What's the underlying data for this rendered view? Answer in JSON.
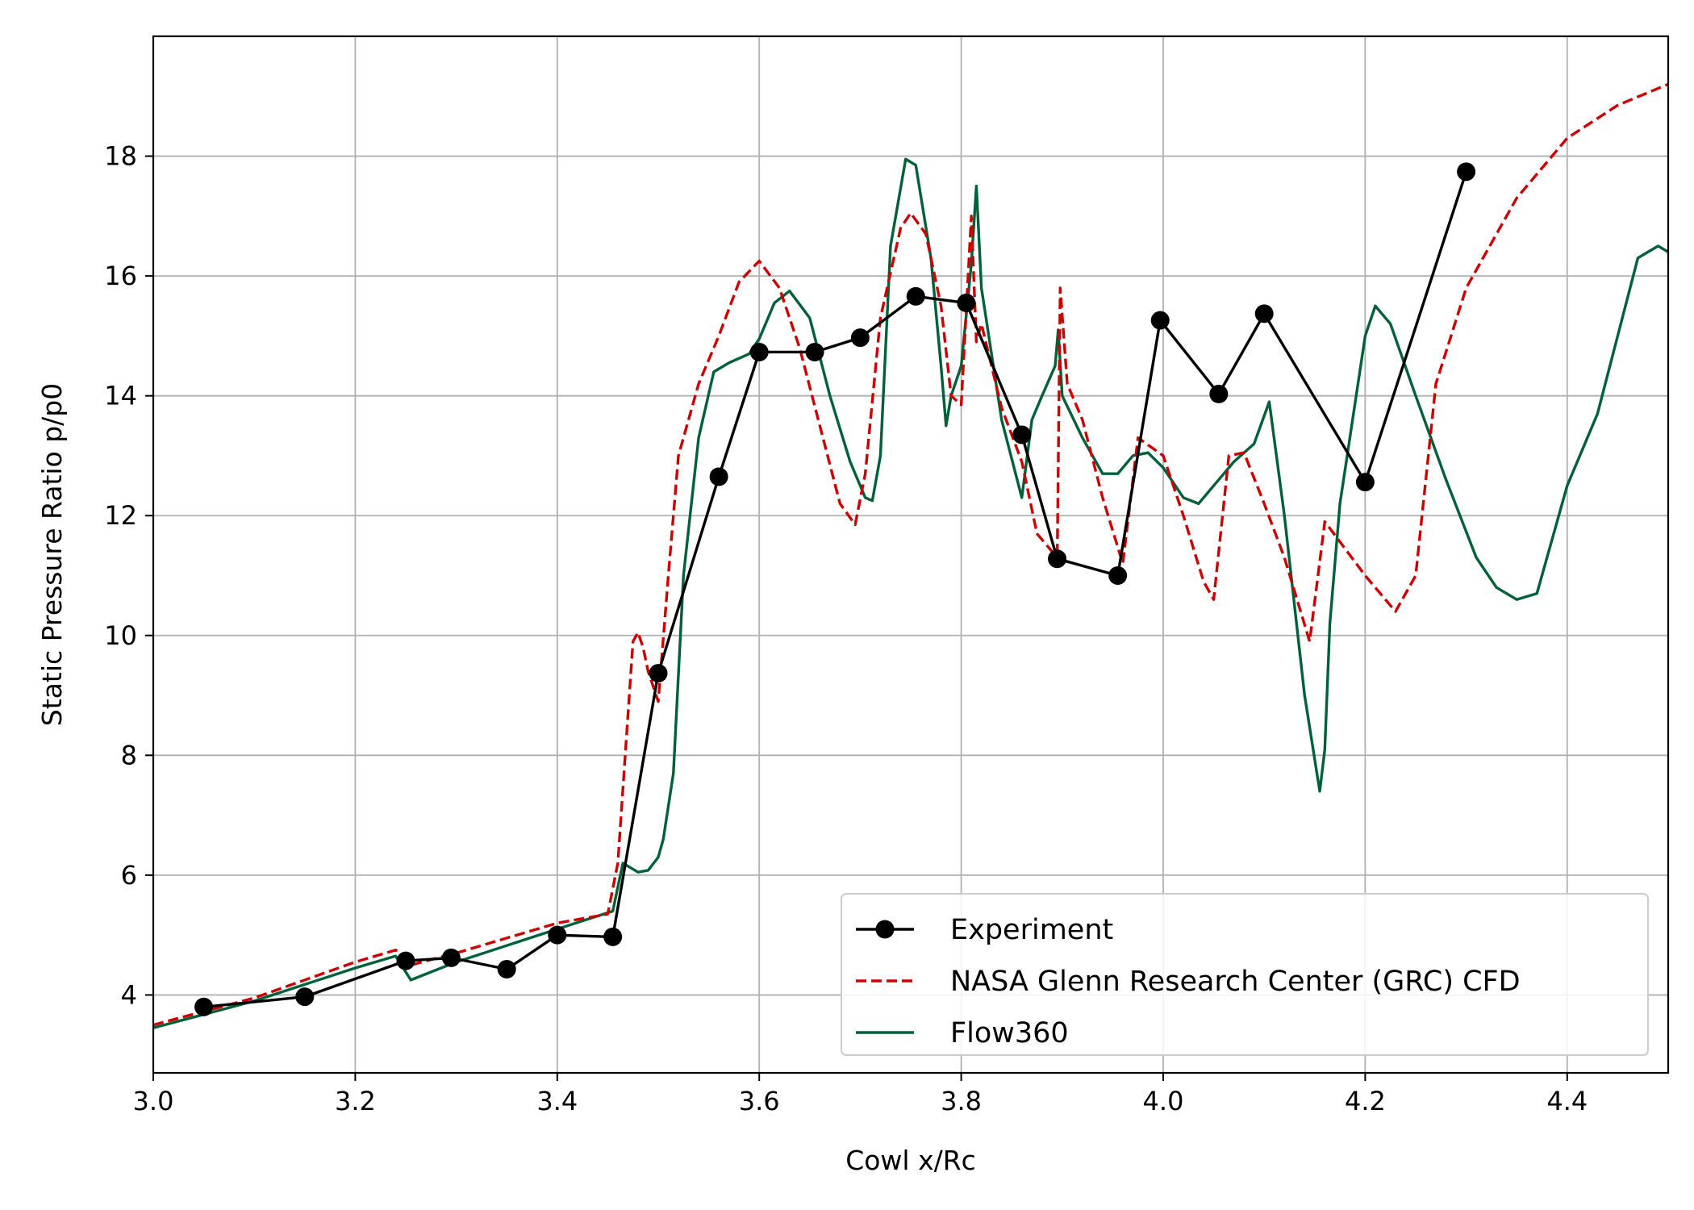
{
  "chart_data": {
    "type": "line",
    "xlabel": "Cowl x/Rc",
    "ylabel": "Static Pressure Ratio p/p0",
    "xlim": [
      3.0,
      4.5
    ],
    "ylim": [
      2.7,
      20.0
    ],
    "xticks": [
      3.0,
      3.2,
      3.4,
      3.6,
      3.8,
      4.0,
      4.2,
      4.4
    ],
    "yticks": [
      4,
      6,
      8,
      10,
      12,
      14,
      16,
      18
    ],
    "xtick_labels": [
      "3.0",
      "3.2",
      "3.4",
      "3.6",
      "3.8",
      "4.0",
      "4.2",
      "4.4"
    ],
    "ytick_labels": [
      "4",
      "6",
      "8",
      "10",
      "12",
      "14",
      "16",
      "18"
    ],
    "grid": true,
    "legend_position": "lower-right",
    "series": [
      {
        "name": "Experiment",
        "color": "#000000",
        "style": "solid-markers",
        "x": [
          3.05,
          3.15,
          3.25,
          3.295,
          3.35,
          3.4,
          3.455,
          3.5,
          3.56,
          3.6,
          3.655,
          3.7,
          3.755,
          3.805,
          3.86,
          3.895,
          3.955,
          3.997,
          4.055,
          4.1,
          4.2,
          4.3
        ],
        "y": [
          3.8,
          3.97,
          4.57,
          4.62,
          4.43,
          5.0,
          4.97,
          9.37,
          12.65,
          14.73,
          14.73,
          14.97,
          15.66,
          15.55,
          13.35,
          11.28,
          11.0,
          15.26,
          14.03,
          15.37,
          12.56,
          17.74
        ]
      },
      {
        "name": "NASA Glenn Research Center (GRC) CFD",
        "color": "#cc0000",
        "style": "dashed",
        "x": [
          3.0,
          3.1,
          3.2,
          3.24,
          3.255,
          3.3,
          3.4,
          3.45,
          3.46,
          3.475,
          3.48,
          3.485,
          3.49,
          3.5,
          3.51,
          3.52,
          3.54,
          3.56,
          3.58,
          3.6,
          3.62,
          3.64,
          3.66,
          3.68,
          3.695,
          3.705,
          3.72,
          3.74,
          3.75,
          3.765,
          3.78,
          3.79,
          3.8,
          3.81,
          3.815,
          3.82,
          3.84,
          3.86,
          3.875,
          3.89,
          3.895,
          3.898,
          3.905,
          3.92,
          3.94,
          3.96,
          3.975,
          4.0,
          4.02,
          4.04,
          4.05,
          4.065,
          4.08,
          4.1,
          4.12,
          4.145,
          4.16,
          4.2,
          4.23,
          4.25,
          4.27,
          4.3,
          4.35,
          4.4,
          4.45,
          4.5
        ],
        "y": [
          3.5,
          3.95,
          4.55,
          4.75,
          4.5,
          4.7,
          5.2,
          5.35,
          6.2,
          9.9,
          10.05,
          9.8,
          9.4,
          8.9,
          11.0,
          13.0,
          14.2,
          15.0,
          15.9,
          16.25,
          15.8,
          14.8,
          13.5,
          12.2,
          11.85,
          12.7,
          15.3,
          16.8,
          17.05,
          16.7,
          15.5,
          14.0,
          13.85,
          17.0,
          14.9,
          15.2,
          13.8,
          12.9,
          11.7,
          11.4,
          11.2,
          15.8,
          14.2,
          13.6,
          12.3,
          11.2,
          13.3,
          13.0,
          12.0,
          10.9,
          10.6,
          13.0,
          13.05,
          12.2,
          11.3,
          9.9,
          11.9,
          11.0,
          10.4,
          11.0,
          14.2,
          15.8,
          17.3,
          18.3,
          18.85,
          19.2
        ]
      },
      {
        "name": "Flow360",
        "color": "#00603a",
        "style": "solid",
        "x": [
          3.0,
          3.1,
          3.2,
          3.24,
          3.255,
          3.3,
          3.4,
          3.455,
          3.465,
          3.48,
          3.49,
          3.5,
          3.505,
          3.515,
          3.525,
          3.54,
          3.555,
          3.57,
          3.59,
          3.6,
          3.615,
          3.63,
          3.65,
          3.67,
          3.69,
          3.705,
          3.712,
          3.72,
          3.73,
          3.745,
          3.755,
          3.77,
          3.78,
          3.785,
          3.79,
          3.8,
          3.81,
          3.815,
          3.82,
          3.84,
          3.86,
          3.87,
          3.88,
          3.893,
          3.896,
          3.9,
          3.92,
          3.94,
          3.955,
          3.97,
          3.985,
          4.0,
          4.02,
          4.035,
          4.05,
          4.07,
          4.09,
          4.105,
          4.12,
          4.14,
          4.155,
          4.16,
          4.165,
          4.175,
          4.2,
          4.21,
          4.225,
          4.25,
          4.28,
          4.31,
          4.33,
          4.35,
          4.37,
          4.4,
          4.43,
          4.45,
          4.47,
          4.49,
          4.5
        ],
        "y": [
          3.45,
          3.9,
          4.45,
          4.65,
          4.25,
          4.55,
          5.1,
          5.4,
          6.2,
          6.05,
          6.08,
          6.3,
          6.6,
          7.7,
          11.0,
          13.3,
          14.4,
          14.55,
          14.7,
          14.95,
          15.55,
          15.75,
          15.3,
          14.0,
          12.9,
          12.3,
          12.25,
          13.0,
          16.5,
          17.95,
          17.85,
          16.3,
          14.5,
          13.5,
          14.0,
          14.5,
          16.2,
          17.5,
          15.8,
          13.6,
          12.3,
          13.6,
          14.0,
          14.5,
          15.1,
          14.0,
          13.3,
          12.7,
          12.7,
          13.0,
          13.05,
          12.8,
          12.3,
          12.2,
          12.5,
          12.9,
          13.2,
          13.9,
          12.0,
          9.0,
          7.4,
          8.1,
          10.2,
          12.2,
          15.0,
          15.5,
          15.2,
          14.0,
          12.6,
          11.3,
          10.8,
          10.6,
          10.7,
          12.5,
          13.7,
          15.0,
          16.3,
          16.5,
          16.4
        ]
      }
    ]
  }
}
